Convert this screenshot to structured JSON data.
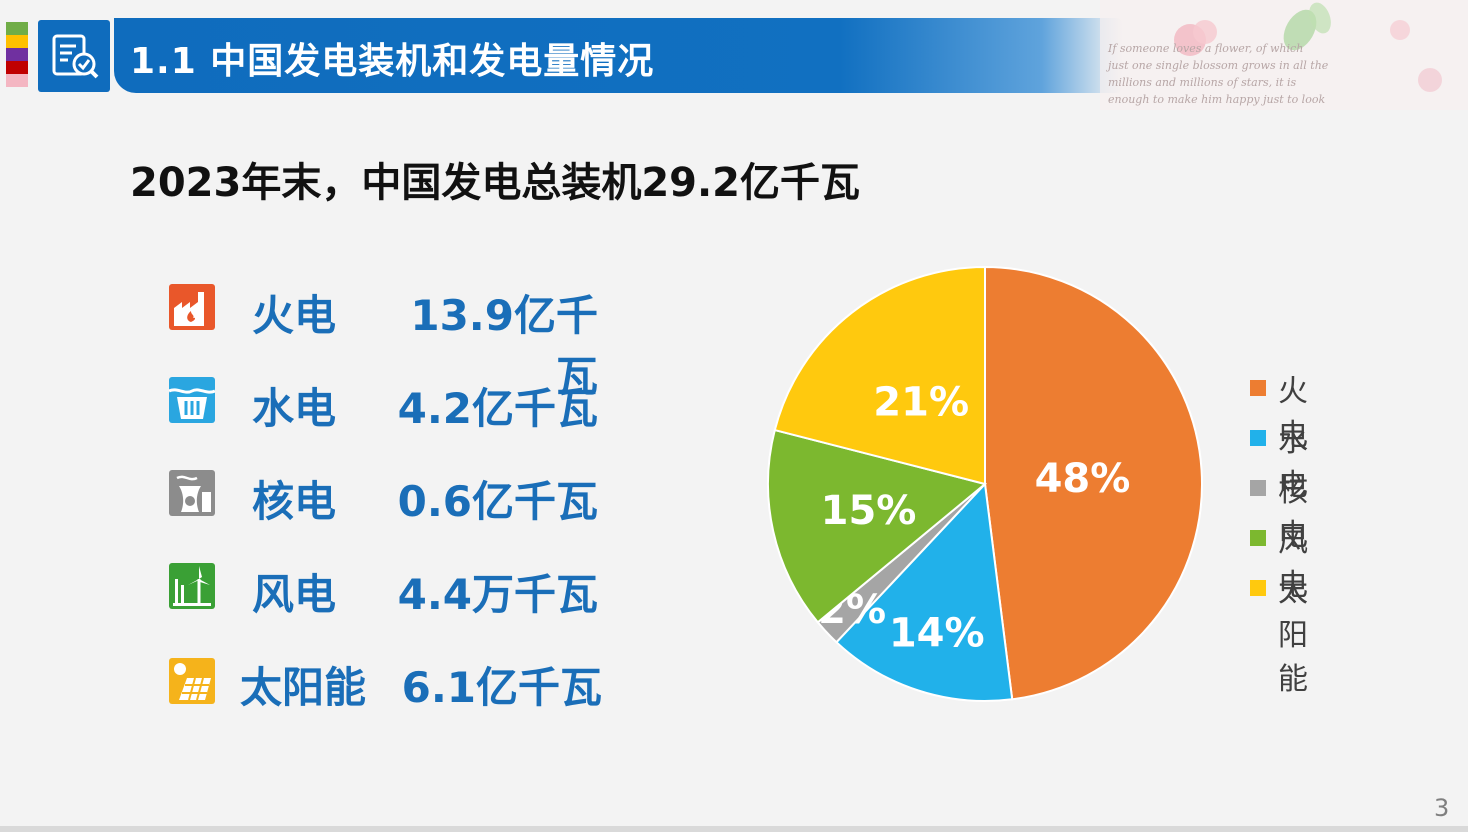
{
  "header": {
    "title": "1.1 中国发电装机和发电量情况",
    "accent_colors": [
      "#70ad47",
      "#ffc000",
      "#7030a0",
      "#c00000",
      "#f4b6c2"
    ]
  },
  "headline": "2023年末，中国发电总装机29.2亿千瓦",
  "rows": [
    {
      "name": "火电",
      "value": "13.9亿千瓦",
      "icon": "thermal-plant-icon"
    },
    {
      "name": "水电",
      "value": "4.2亿千瓦",
      "icon": "hydro-dam-icon"
    },
    {
      "name": "核电",
      "value": "0.6亿千瓦",
      "icon": "nuclear-plant-icon"
    },
    {
      "name": "风电",
      "value": "4.4万千瓦",
      "icon": "wind-turbine-icon"
    },
    {
      "name": "太阳能",
      "value": "6.1亿千瓦",
      "icon": "solar-panel-icon"
    }
  ],
  "decor_text": [
    "If someone loves a flower, of which",
    "just one single blossom grows in all the",
    "millions and millions of stars, it is",
    "enough to make him happy just to look"
  ],
  "chart_data": {
    "type": "pie",
    "categories": [
      "火电",
      "水电",
      "核电",
      "风电",
      "太阳能"
    ],
    "values": [
      48,
      14,
      2,
      15,
      21
    ],
    "labels": [
      "48%",
      "14%",
      "2%",
      "15%",
      "21%"
    ],
    "colors": [
      "#ed7d31",
      "#21b1ea",
      "#a5a5a5",
      "#7cb82f",
      "#ffc90e"
    ],
    "legend_position": "right",
    "start": "12 o'clock",
    "direction": "clockwise"
  },
  "page_number": "3"
}
